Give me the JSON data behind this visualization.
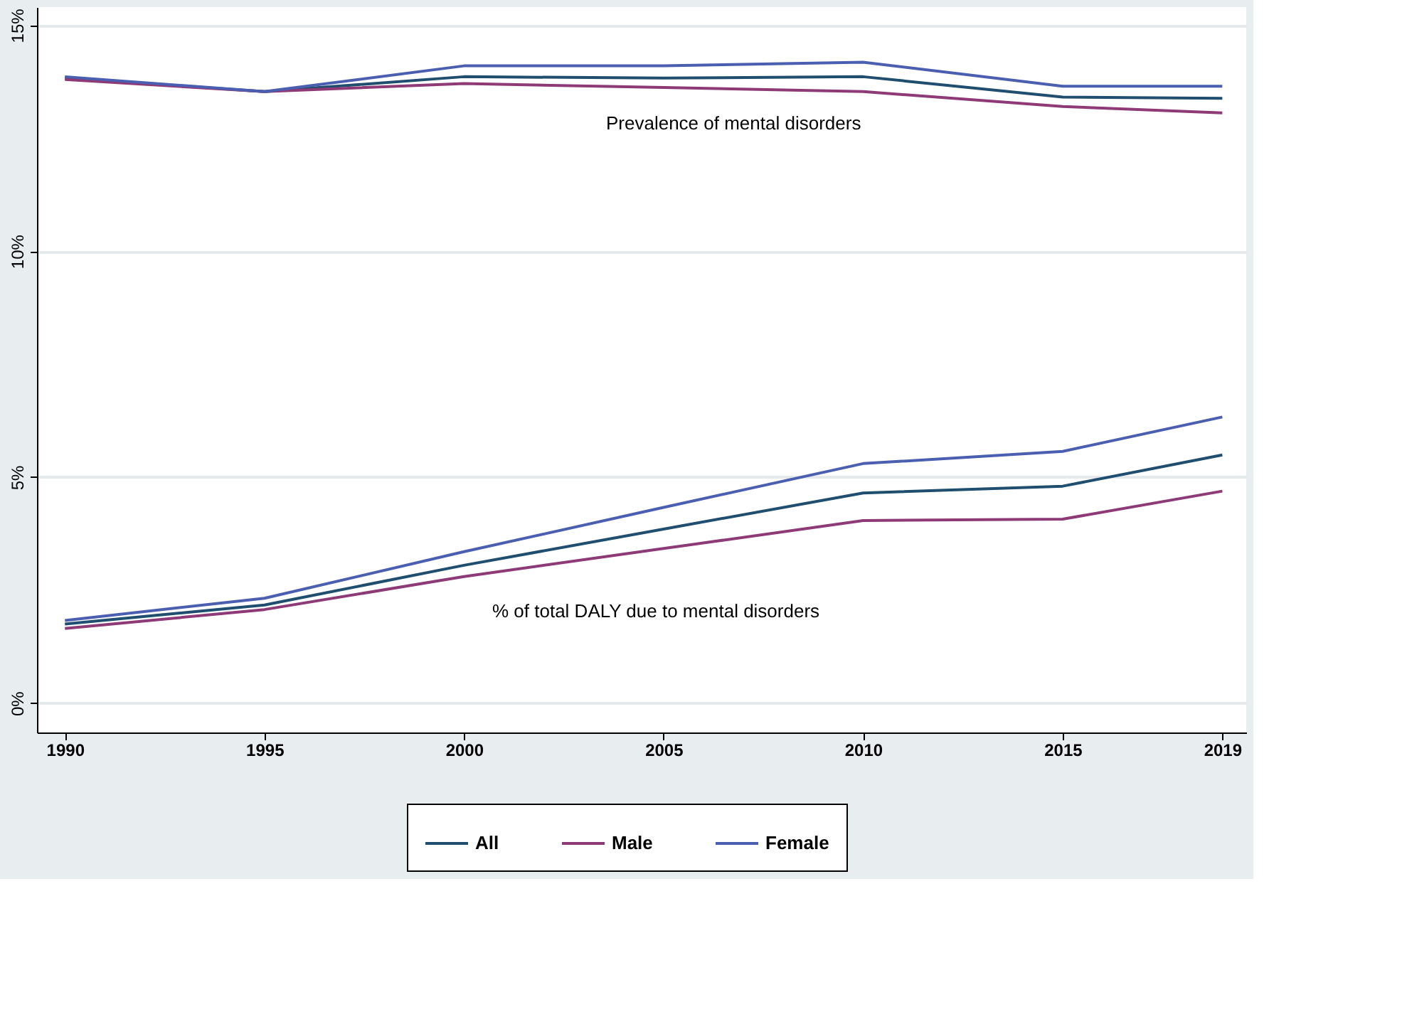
{
  "chart_data": {
    "type": "line",
    "x": [
      1990,
      1995,
      2000,
      2005,
      2010,
      2015,
      2019
    ],
    "series": [
      {
        "name": "All",
        "color": "#1f4e6e",
        "values": [
          13.83,
          13.53,
          13.86,
          13.83,
          13.86,
          13.41,
          13.38
        ]
      },
      {
        "name": "Male",
        "color": "#8e3a76",
        "values": [
          13.8,
          13.53,
          13.71,
          13.62,
          13.53,
          13.2,
          13.06
        ]
      },
      {
        "name": "Female",
        "color": "#4a5fb0",
        "values": [
          13.86,
          13.53,
          14.1,
          14.1,
          14.18,
          13.65,
          13.65
        ]
      },
      {
        "color": "#1f4e6e",
        "values": [
          1.75,
          2.17,
          3.05,
          3.85,
          4.65,
          4.8,
          5.49
        ]
      },
      {
        "color": "#8e3a76",
        "values": [
          1.65,
          2.07,
          2.8,
          3.42,
          4.04,
          4.07,
          4.69
        ]
      },
      {
        "color": "#4a5fb0",
        "values": [
          1.83,
          2.32,
          3.35,
          4.33,
          5.3,
          5.57,
          6.33
        ]
      }
    ],
    "xlim": [
      1989.3,
      2019.6
    ],
    "xticks": [
      1990,
      1995,
      2000,
      2005,
      2010,
      2015,
      2019
    ],
    "ylim": [
      -0.65,
      15.4
    ],
    "yticks": [
      {
        "value": 0,
        "label": "0%"
      },
      {
        "value": 5,
        "label": "5%"
      },
      {
        "value": 10,
        "label": "10%"
      },
      {
        "value": 15,
        "label": "15%"
      }
    ],
    "annotations": [
      "Prevalence of mental disorders",
      "% of total DALY due to mental disorders"
    ],
    "grid": "y",
    "legend": "bottom",
    "marker": "none",
    "line_style": "solid"
  }
}
